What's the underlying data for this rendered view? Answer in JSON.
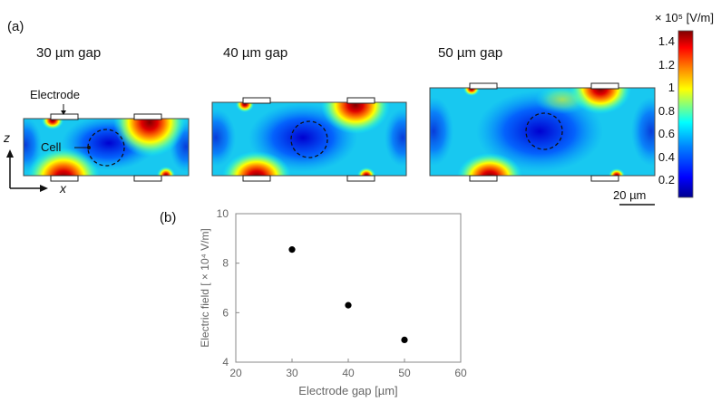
{
  "panel_a_label": "(a)",
  "panel_b_label": "(b)",
  "field_maps": [
    {
      "title": "30 µm gap"
    },
    {
      "title": "40 µm gap"
    },
    {
      "title": "50 µm gap"
    }
  ],
  "annotations": {
    "electrode": "Electrode",
    "cell": "Cell",
    "axis_z": "z",
    "axis_x": "x",
    "scale_bar": "20 µm"
  },
  "colorbar": {
    "unit": "× 10⁵ [V/m]",
    "ticks": [
      "1.4",
      "1.2",
      "1",
      "0.8",
      "0.6",
      "0.4",
      "0.2"
    ],
    "colors": [
      "#00008f",
      "#0000ff",
      "#0080ff",
      "#00ffff",
      "#80ff80",
      "#ffff00",
      "#ff8000",
      "#ff0000",
      "#800000"
    ]
  },
  "chart_data": {
    "type": "scatter",
    "xlabel": "Electrode gap [µm]",
    "ylabel": "Electric field [ × 10⁴ V/m]",
    "xlim": [
      20,
      60
    ],
    "ylim": [
      4,
      10
    ],
    "xticks": [
      "20",
      "30",
      "40",
      "50",
      "60"
    ],
    "yticks": [
      "4",
      "6",
      "8",
      "10"
    ],
    "x": [
      30,
      40,
      50
    ],
    "y": [
      8.55,
      6.3,
      4.9
    ]
  }
}
